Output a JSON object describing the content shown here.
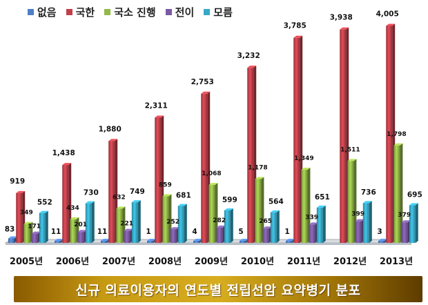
{
  "colors": {
    "없음": "#4f7fc4",
    "국한": "#c0404a",
    "국소 진행": "#93b948",
    "전이": "#7a5aa2",
    "모름": "#36a9c7"
  },
  "banner": {
    "title": "신규 의료이용자의 연도별 전립선암 요약병기 분포"
  },
  "chart_data": {
    "type": "bar",
    "categories": [
      "2005년",
      "2006년",
      "2007년",
      "2008년",
      "2009년",
      "2010년",
      "2011년",
      "2012년",
      "2013년"
    ],
    "series": [
      {
        "name": "없음",
        "values": [
          83,
          11,
          11,
          1,
          4,
          5,
          1,
          null,
          3
        ]
      },
      {
        "name": "국한",
        "values": [
          919,
          1438,
          1880,
          2311,
          2753,
          3232,
          3785,
          3938,
          4005
        ]
      },
      {
        "name": "국소 진행",
        "values": [
          349,
          434,
          632,
          859,
          1068,
          1178,
          1349,
          1511,
          1798
        ]
      },
      {
        "name": "전이",
        "values": [
          171,
          201,
          221,
          252,
          282,
          265,
          339,
          399,
          379
        ]
      },
      {
        "name": "모름",
        "values": [
          552,
          730,
          749,
          681,
          599,
          564,
          651,
          736,
          695
        ]
      }
    ],
    "data_labels": [
      [
        "83",
        "919",
        "349",
        "171",
        "552"
      ],
      [
        "11",
        "1,438",
        "434",
        "201",
        "730"
      ],
      [
        "11",
        "1,880",
        "632",
        "221",
        "749"
      ],
      [
        "1",
        "2,311",
        "859",
        "252",
        "681"
      ],
      [
        "4",
        "2,753",
        "1,068",
        "282",
        "599"
      ],
      [
        "5",
        "3,232",
        "1,178",
        "265",
        "564"
      ],
      [
        "1",
        "3,785",
        "1,349",
        "339",
        "651"
      ],
      [
        "",
        "3,938",
        "1,511",
        "399",
        "736"
      ],
      [
        "3",
        "4,005",
        "1,798",
        "379",
        "695"
      ]
    ],
    "ylim": [
      0,
      4100
    ],
    "grid": false,
    "legend_position": "top-left",
    "xlabel": "",
    "ylabel": ""
  }
}
